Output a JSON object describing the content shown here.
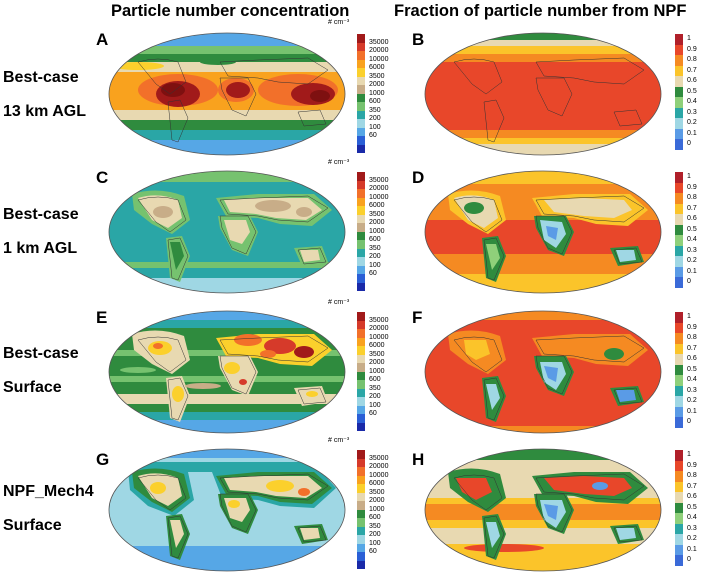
{
  "column_titles": [
    "Particle number concentration",
    "Fraction of particle number from NPF"
  ],
  "rows": [
    {
      "label_line1": "Best-case",
      "label_line2": "13 km AGL",
      "left_letter": "A",
      "right_letter": "B"
    },
    {
      "label_line1": "Best-case",
      "label_line2": "1 km AGL",
      "left_letter": "C",
      "right_letter": "D"
    },
    {
      "label_line1": "Best-case",
      "label_line2": "Surface",
      "left_letter": "E",
      "right_letter": "F"
    },
    {
      "label_line1": "NPF_Mech4",
      "label_line2": "Surface",
      "left_letter": "G",
      "right_letter": "H"
    }
  ],
  "concentration_colorbar": {
    "unit": "# cm⁻³",
    "ticks": [
      "35000",
      "20000",
      "10000",
      "6000",
      "3500",
      "2000",
      "1000",
      "600",
      "350",
      "200",
      "100",
      "60"
    ],
    "colors": [
      "#a11a1a",
      "#d63a2a",
      "#f2702a",
      "#f9a21e",
      "#fbd02c",
      "#e8d9b1",
      "#c8ad88",
      "#2f8b3e",
      "#76c26f",
      "#2aa6a6",
      "#9fd7e4",
      "#56a7e6",
      "#2a5fd6",
      "#1a2aa8"
    ]
  },
  "fraction_colorbar": {
    "ticks": [
      "1",
      "0.9",
      "0.8",
      "0.7",
      "0.6",
      "0.5",
      "0.4",
      "0.3",
      "0.2",
      "0.1",
      "0"
    ],
    "colors": [
      "#b0202a",
      "#e8472a",
      "#f58a22",
      "#fbc42a",
      "#e8d9b1",
      "#2f8b3e",
      "#8fd07a",
      "#2aa6a6",
      "#9fd7e4",
      "#5a9be6",
      "#3a6ad8"
    ]
  }
}
